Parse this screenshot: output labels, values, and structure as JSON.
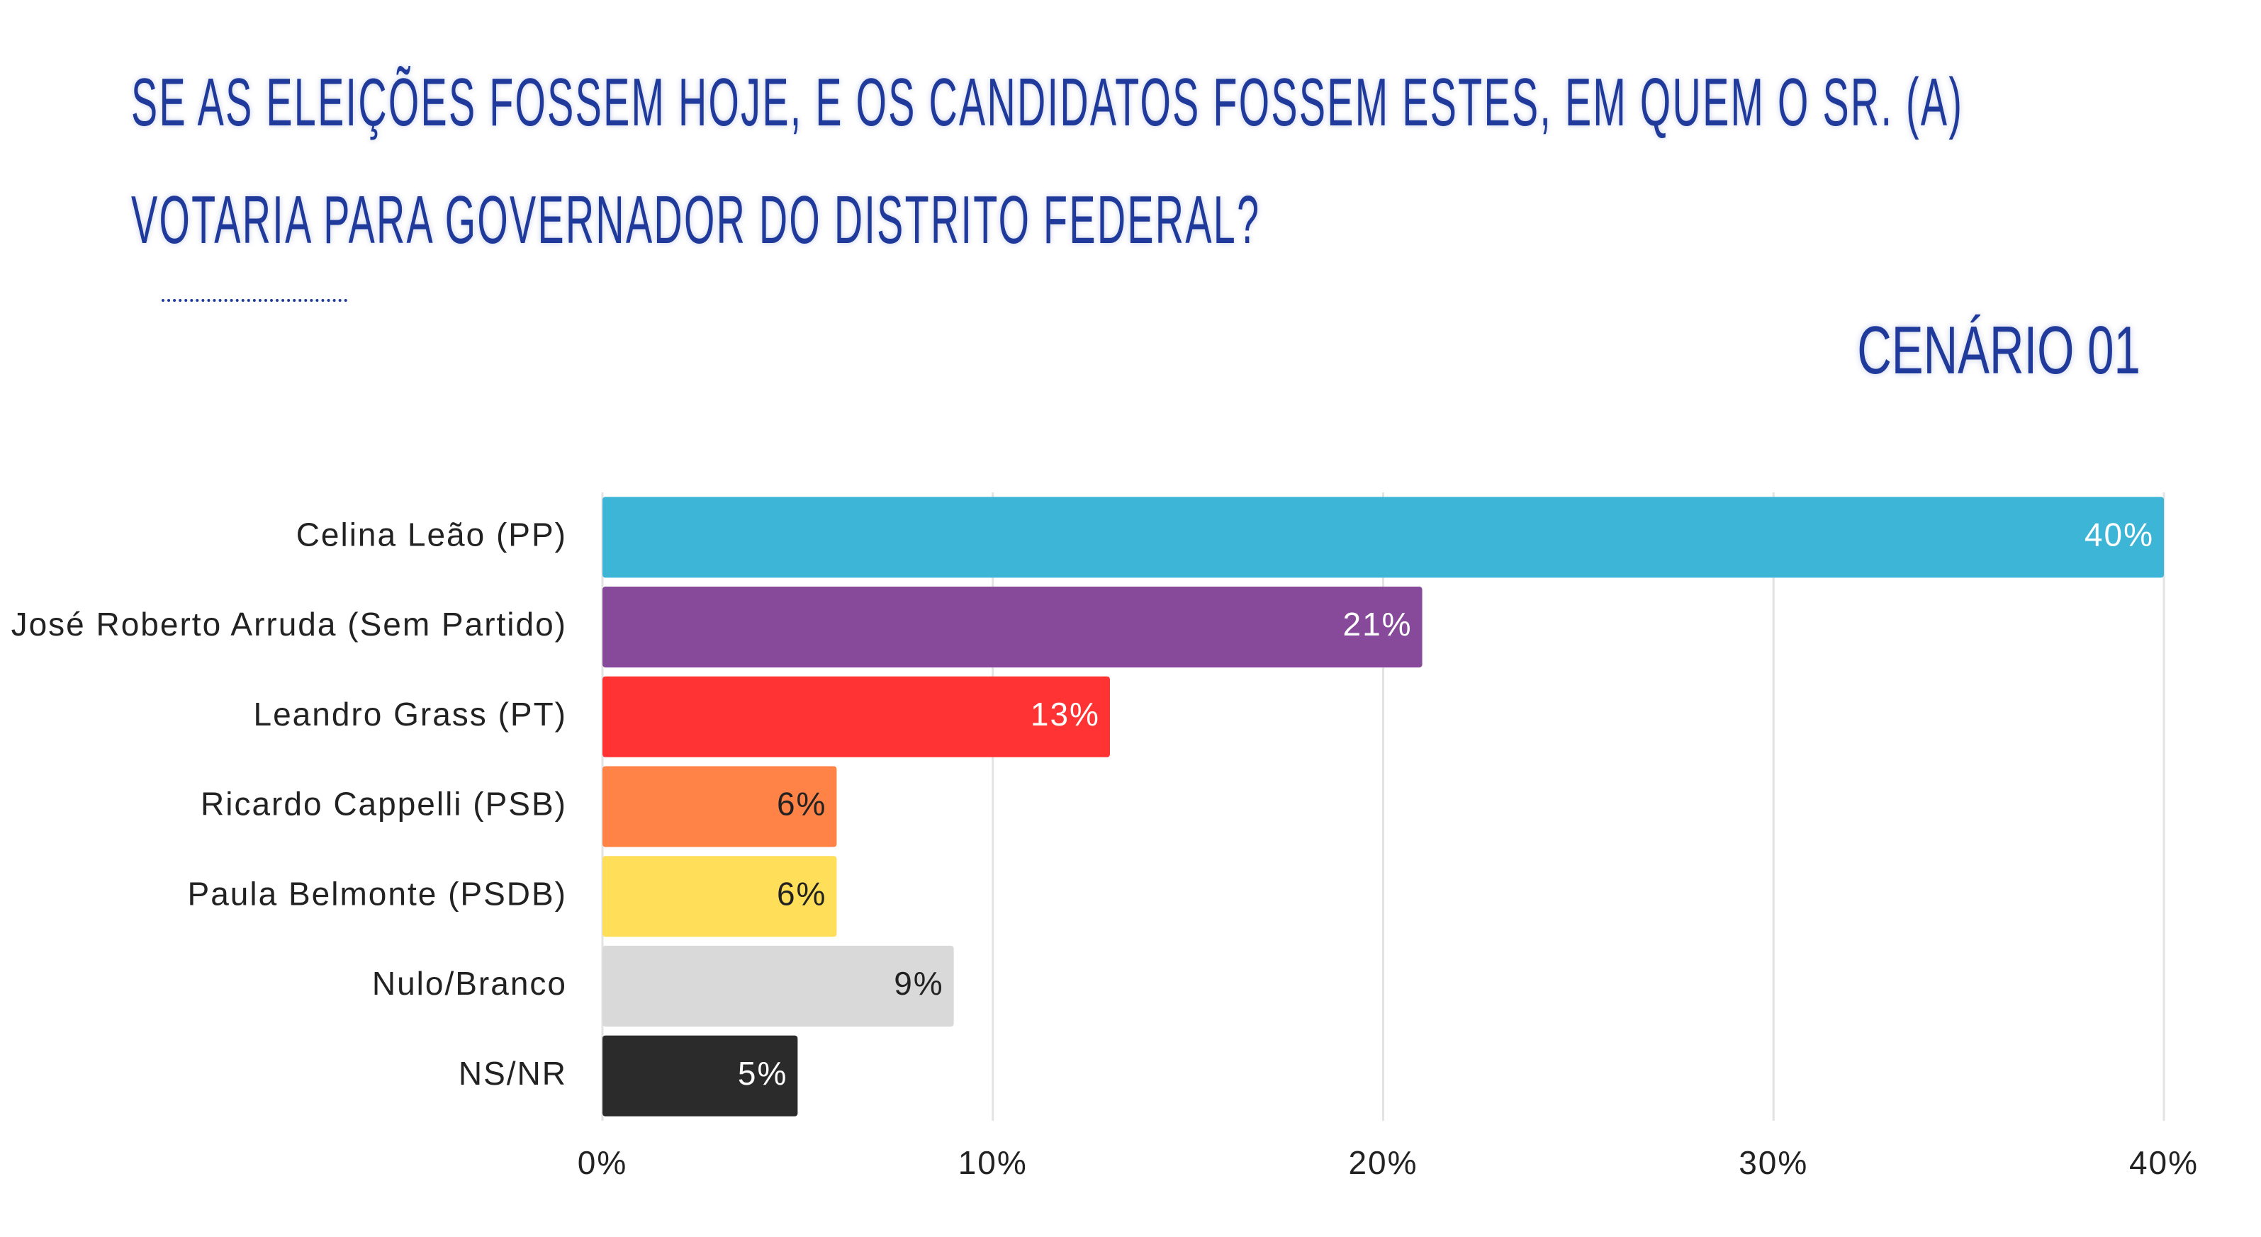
{
  "chart_data": {
    "type": "bar",
    "orientation": "horizontal",
    "title": "SE AS ELEIÇÕES FOSSEM HOJE, E OS CANDIDATOS FOSSEM ESTES, EM QUEM O SR. (A) VOTARIA PARA GOVERNADOR DO DISTRITO FEDERAL?",
    "subtitle": "CENÁRIO 01",
    "categories": [
      "Celina Leão (PP)",
      "José Roberto Arruda (Sem Partido)",
      "Leandro Grass (PT)",
      "Ricardo Cappelli (PSB)",
      "Paula Belmonte (PSDB)",
      "Nulo/Branco",
      "NS/NR"
    ],
    "values": [
      40,
      21,
      13,
      6,
      6,
      9,
      5
    ],
    "value_labels": [
      "40%",
      "21%",
      "13%",
      "6%",
      "6%",
      "9%",
      "5%"
    ],
    "colors": [
      "#3db5d6",
      "#874a9a",
      "#ff3333",
      "#ff8247",
      "#ffde59",
      "#d9d9d9",
      "#2b2b2b"
    ],
    "xlim": [
      0,
      40
    ],
    "xticks": [
      {
        "value": 0,
        "label": "0%"
      },
      {
        "value": 10,
        "label": "10%"
      },
      {
        "value": 20,
        "label": "20%"
      },
      {
        "value": 30,
        "label": "30%"
      },
      {
        "value": 40,
        "label": "40%"
      }
    ],
    "grid": true
  }
}
